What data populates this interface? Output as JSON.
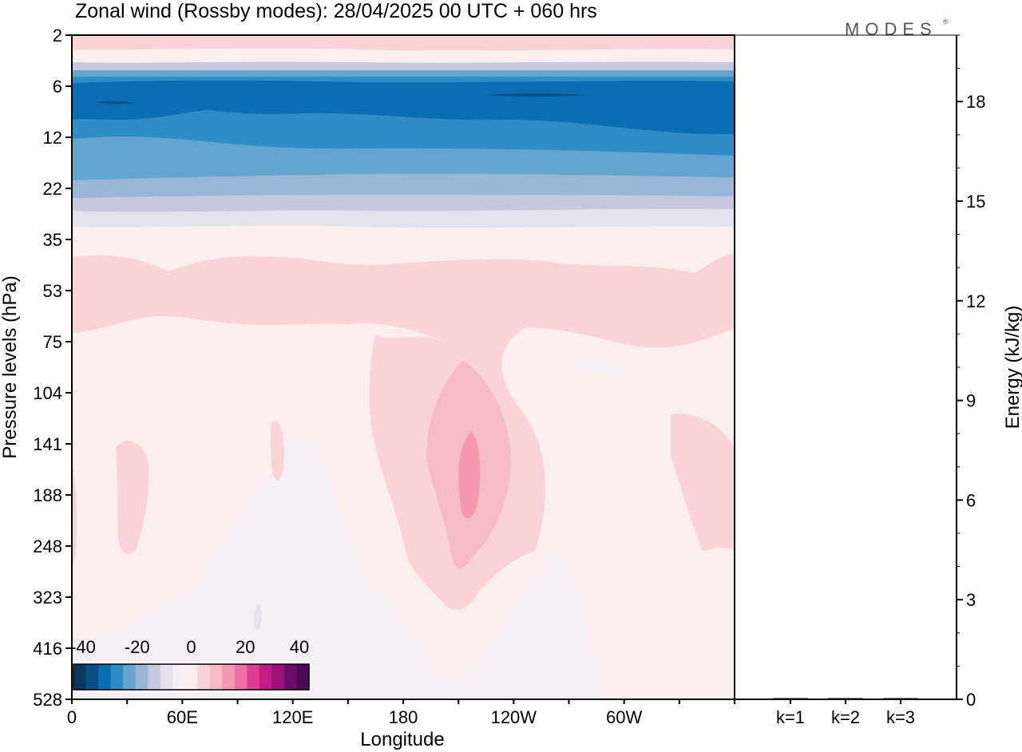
{
  "header": {
    "title": "Zonal wind (Rossby modes):  28/04/2025  00 UTC  + 060 hrs",
    "brand": "MODES",
    "brand_mark": "®"
  },
  "chart_data": [
    {
      "type": "heatmap",
      "variable": "Zonal wind",
      "xlabel": "Longitude",
      "ylabel": "Pressure levels (hPa)",
      "x_ticks": [
        "0",
        "60E",
        "120E",
        "180",
        "120W",
        "60W"
      ],
      "y_ticks": [
        "2",
        "6",
        "12",
        "22",
        "35",
        "53",
        "75",
        "104",
        "141",
        "188",
        "248",
        "323",
        "416",
        "528"
      ],
      "colorbar": {
        "tick_labels": [
          "-40",
          "-20",
          "0",
          "20",
          "40"
        ],
        "colors": [
          "#0b3a5c",
          "#0a4f86",
          "#0a6eb0",
          "#2f8cc4",
          "#64a4cf",
          "#98b6d6",
          "#c4c8e0",
          "#e4e2ee",
          "#f4eef5",
          "#fdeeee",
          "#f9d3d6",
          "#f6bcc4",
          "#f599b2",
          "#ef70a4",
          "#df3d94",
          "#c41c86",
          "#9c1279",
          "#6d0c6b",
          "#4a0a57"
        ]
      },
      "description_bands": [
        {
          "level": "2",
          "sign": "positive",
          "speed_range": [
            0,
            10
          ]
        },
        {
          "level": "6",
          "sign": "negative",
          "speed_range": [
            -40,
            -30
          ]
        },
        {
          "level": "12",
          "sign": "negative",
          "speed_range": [
            -30,
            -20
          ]
        },
        {
          "level": "22",
          "sign": "negative",
          "speed_range": [
            -15,
            -5
          ]
        },
        {
          "level": "53",
          "sign": "positive",
          "speed_range": [
            0,
            10
          ]
        },
        {
          "level": "188",
          "sign": "positive",
          "speed_range": [
            10,
            20
          ],
          "center_longitude": "200"
        }
      ]
    },
    {
      "type": "bar",
      "categories": [
        "k=1",
        "k=2",
        "k=3"
      ],
      "values": [
        0.02,
        0.01,
        0.01
      ],
      "ylabel": "Energy (kJ/kg)",
      "y_ticks": [
        "0",
        "3",
        "6",
        "9",
        "12",
        "15",
        "18"
      ],
      "ylim": [
        0,
        20
      ]
    }
  ]
}
